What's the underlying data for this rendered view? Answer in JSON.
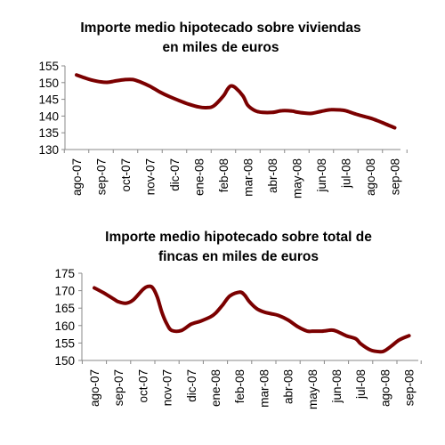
{
  "chart_data": [
    {
      "type": "line",
      "title_lines": [
        "Importe medio hipotecado sobre viviendas",
        "en miles de euros"
      ],
      "categories": [
        "ago-07",
        "sep-07",
        "oct-07",
        "nov-07",
        "dic-07",
        "ene-08",
        "feb-08",
        "mar-08",
        "abr-08",
        "may-08",
        "jun-08",
        "jul-08",
        "ago-08",
        "sep-08"
      ],
      "x": [
        0,
        0.3,
        0.6,
        1,
        1.3,
        1.6,
        2,
        2.3,
        2.6,
        3,
        3.4,
        3.8,
        4.2,
        4.6,
        5,
        5.3,
        5.6,
        6,
        6.15,
        6.3,
        6.5,
        6.8,
        7,
        7.3,
        7.6,
        8,
        8.4,
        8.8,
        9,
        9.3,
        9.6,
        10,
        10.4,
        10.8,
        11,
        11.4,
        11.8,
        12,
        12.3,
        12.6,
        13
      ],
      "series": [
        {
          "values": [
            152.3,
            151.5,
            150.8,
            150.2,
            150.1,
            150.5,
            150.9,
            150.9,
            150.2,
            148.9,
            147.2,
            145.8,
            144.6,
            143.5,
            142.7,
            142.5,
            143.0,
            146.0,
            147.8,
            149.0,
            148.4,
            146.0,
            143.2,
            141.6,
            141.1,
            141.1,
            141.6,
            141.5,
            141.2,
            140.9,
            140.8,
            141.4,
            141.9,
            141.8,
            141.6,
            140.6,
            139.8,
            139.4,
            138.6,
            137.7,
            136.5
          ]
        }
      ],
      "y_ticks": [
        130,
        135,
        140,
        145,
        150,
        155
      ],
      "ylim": [
        130,
        155
      ],
      "color": "#7b0000",
      "grid": false
    },
    {
      "type": "line",
      "title_lines": [
        "Importe medio hipotecado sobre total de",
        "fincas en miles de euros"
      ],
      "categories": [
        "ago-07",
        "sep-07",
        "oct-07",
        "nov-07",
        "dic-07",
        "ene-08",
        "feb-08",
        "mar-08",
        "abr-08",
        "may-08",
        "jun-08",
        "jul-08",
        "ago-08",
        "sep-08"
      ],
      "x": [
        0,
        0.4,
        0.8,
        1,
        1.3,
        1.6,
        2,
        2.2,
        2.4,
        2.6,
        2.8,
        3,
        3.2,
        3.6,
        4,
        4.4,
        4.8,
        5,
        5.3,
        5.6,
        6,
        6.2,
        6.4,
        6.7,
        7,
        7.3,
        7.6,
        8,
        8.4,
        8.8,
        9,
        9.4,
        9.8,
        10,
        10.4,
        10.8,
        11,
        11.4,
        11.8,
        12,
        12.3,
        12.6,
        13
      ],
      "series": [
        {
          "values": [
            170.8,
            169.3,
            167.6,
            166.8,
            166.4,
            167.3,
            170.3,
            171.2,
            170.9,
            168.2,
            163.6,
            160.4,
            158.6,
            158.6,
            160.4,
            161.3,
            162.5,
            163.5,
            165.9,
            168.5,
            169.6,
            168.8,
            166.9,
            164.9,
            163.9,
            163.4,
            162.9,
            161.6,
            159.7,
            158.4,
            158.4,
            158.4,
            158.7,
            158.4,
            157.1,
            156.2,
            154.8,
            153.0,
            152.5,
            152.8,
            154.3,
            155.9,
            157.1
          ]
        }
      ],
      "y_ticks": [
        150,
        155,
        160,
        165,
        170,
        175
      ],
      "ylim": [
        150,
        175
      ],
      "color": "#7b0000",
      "grid": false
    }
  ]
}
